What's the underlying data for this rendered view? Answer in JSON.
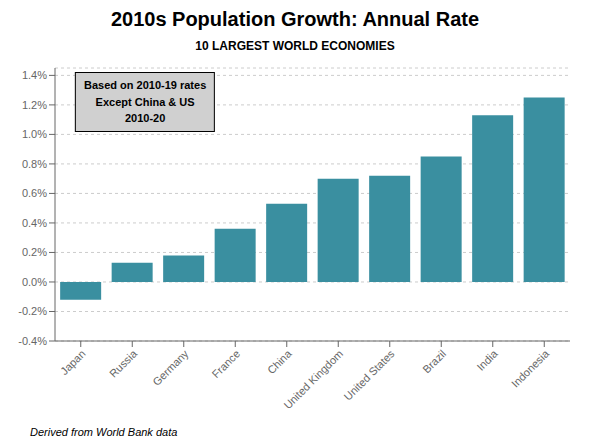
{
  "chart_data": {
    "type": "bar",
    "title": "2010s Population Growth: Annual Rate",
    "subtitle": "10 LARGEST WORLD ECONOMIES",
    "categories": [
      "Japan",
      "Russia",
      "Germany",
      "France",
      "China",
      "United Kingdom",
      "United States",
      "Brazil",
      "India",
      "Indonesia"
    ],
    "values": [
      -0.12,
      0.13,
      0.18,
      0.36,
      0.53,
      0.7,
      0.72,
      0.85,
      1.13,
      1.25
    ],
    "color": "#3a8fa0",
    "ylim": [
      -0.4,
      1.45
    ],
    "yticks": [
      {
        "value": -0.4,
        "label": "-0.4%"
      },
      {
        "value": -0.2,
        "label": "-0.2%"
      },
      {
        "value": 0.0,
        "label": "0.0%"
      },
      {
        "value": 0.2,
        "label": "0.2%"
      },
      {
        "value": 0.4,
        "label": "0.4%"
      },
      {
        "value": 0.6,
        "label": "0.6%"
      },
      {
        "value": 0.8,
        "label": "0.8%"
      },
      {
        "value": 1.0,
        "label": "1.0%"
      },
      {
        "value": 1.2,
        "label": "1.2%"
      },
      {
        "value": 1.4,
        "label": "1.4%"
      }
    ],
    "annotation": "Based on 2010-19 rates\nExcept China & US\n2010-20",
    "footnote": "Derived from World Bank data",
    "grid": true
  }
}
